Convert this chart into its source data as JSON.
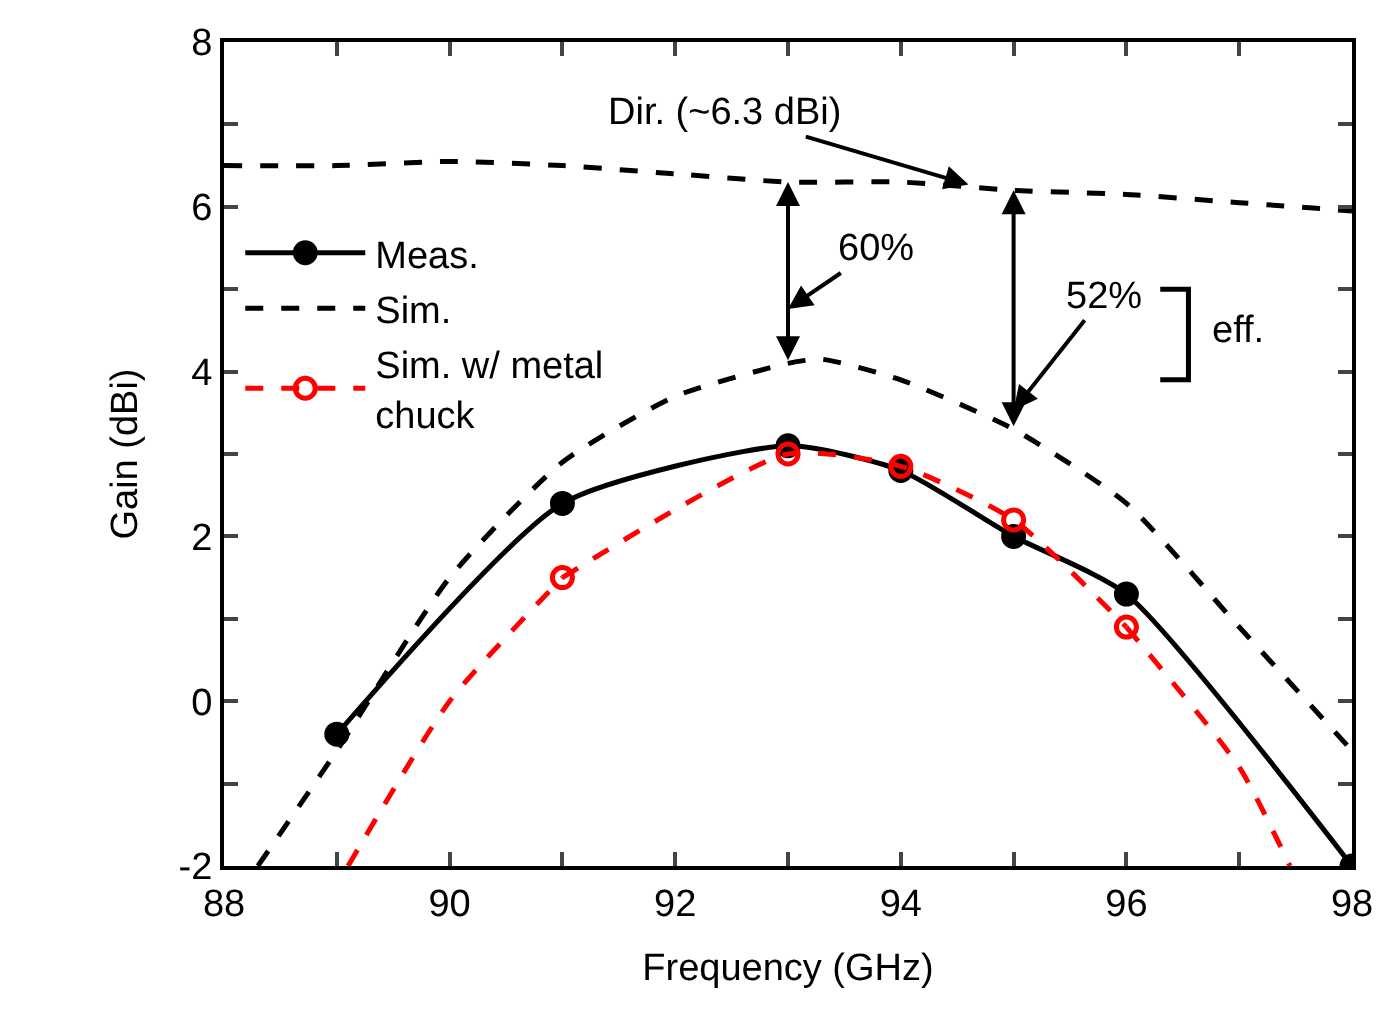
{
  "chart_data": {
    "type": "line",
    "xlabel": "Frequency (GHz)",
    "ylabel": "Gain (dBi)",
    "xlim": [
      88,
      98
    ],
    "ylim": [
      -2,
      8
    ],
    "xticks": [
      88,
      {
        "value": 89,
        "label": null
      },
      90,
      {
        "value": 91,
        "label": null
      },
      92,
      {
        "value": 93,
        "label": null
      },
      94,
      {
        "value": 95,
        "label": null
      },
      96,
      {
        "value": 97,
        "label": null
      },
      98
    ],
    "yticks": [
      -2,
      {
        "value": -1,
        "label": null
      },
      0,
      {
        "value": 1,
        "label": null
      },
      2,
      {
        "value": 3,
        "label": null
      },
      4,
      {
        "value": 5,
        "label": null
      },
      6,
      {
        "value": 7,
        "label": null
      },
      8
    ],
    "legend": "top left",
    "series": [
      {
        "name": "Meas.",
        "color": "#000000",
        "marker": "circle",
        "line_style": "solid",
        "x": [
          89,
          91,
          93,
          94,
          95,
          96,
          98
        ],
        "values": [
          -0.4,
          2.4,
          3.1,
          2.8,
          2.0,
          1.3,
          -2.0
        ]
      },
      {
        "name": "Sim.",
        "color": "#000000",
        "marker": "none",
        "line_style": "dashed",
        "x": [
          88.3,
          89,
          90,
          91,
          92,
          93,
          93.3,
          94,
          95,
          96,
          97,
          98
        ],
        "values": [
          -2.0,
          -0.6,
          1.5,
          2.9,
          3.7,
          4.1,
          4.15,
          3.9,
          3.3,
          2.4,
          0.9,
          -0.6
        ]
      },
      {
        "name": "Sim. w/ metal chuck",
        "color": "#ff0000",
        "marker": "circle-open",
        "line_style": "dashed",
        "x": [
          91,
          93,
          94,
          95,
          96
        ],
        "values": [
          1.5,
          3.0,
          2.85,
          2.2,
          0.9
        ]
      },
      {
        "color": "#000000",
        "marker": "none",
        "line_style": "dashed",
        "x": [
          88,
          89,
          90,
          91,
          92,
          93,
          94,
          95,
          96,
          97,
          98
        ],
        "values": [
          6.5,
          6.5,
          6.55,
          6.5,
          6.4,
          6.3,
          6.3,
          6.2,
          6.15,
          6.05,
          5.95
        ]
      },
      {
        "color": "#ff0000",
        "marker": "none",
        "line_style": "dashed",
        "x": [
          89.1,
          90,
          91
        ],
        "values": [
          -2.0,
          0.0,
          1.5
        ]
      },
      {
        "color": "#ff0000",
        "marker": "none",
        "line_style": "dashed",
        "x": [
          96,
          97,
          97.45
        ],
        "values": [
          0.9,
          -0.8,
          -2.0
        ]
      }
    ],
    "annotations": [
      {
        "text": "Dir. (~6.3 dBi)",
        "x": 94.6,
        "y": 6.27
      },
      "60%",
      "52%",
      "eff."
    ]
  }
}
